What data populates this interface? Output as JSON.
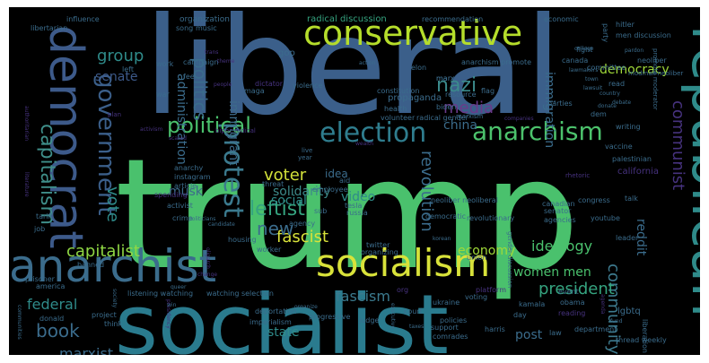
{
  "cloud": {
    "background": "#000000",
    "palette": [
      "#440154",
      "#46327e",
      "#365c8d",
      "#277f8e",
      "#1fa187",
      "#4ac16d",
      "#a0da39",
      "#fde725"
    ],
    "words": [
      {
        "text": "trump",
        "tone": "#4ac16d"
      },
      {
        "text": "liberal",
        "tone": "#3b5f8a"
      },
      {
        "text": "socialist",
        "tone": "#2a7b8e"
      },
      {
        "text": "republican",
        "tone": "#2f8b8a"
      },
      {
        "text": "democrat",
        "tone": "#3d5a8a"
      },
      {
        "text": "anarchist",
        "tone": "#3b6c8c"
      },
      {
        "text": "socialism",
        "tone": "#d8e23a"
      },
      {
        "text": "conservative",
        "tone": "#b5dd2b"
      },
      {
        "text": "election",
        "tone": "#2f7d8e"
      },
      {
        "text": "anarchism",
        "tone": "#4cc26c"
      },
      {
        "text": "government",
        "tone": "#3b5f8a"
      },
      {
        "text": "capitalism",
        "tone": "#3f8f8a"
      },
      {
        "text": "protest",
        "tone": "#3b7a8e"
      },
      {
        "text": "political",
        "tone": "#4ac16d"
      },
      {
        "text": "communist",
        "tone": "#46327e"
      },
      {
        "text": "politics",
        "tone": "#3b6c8c"
      },
      {
        "text": "media",
        "tone": "#6a3a8a"
      },
      {
        "text": "nazi",
        "tone": "#3b8a8c"
      },
      {
        "text": "china",
        "tone": "#3b6c8c"
      },
      {
        "text": "group",
        "tone": "#2f8b8a"
      },
      {
        "text": "senate",
        "tone": "#3d5a8a"
      },
      {
        "text": "democracy",
        "tone": "#a0da39"
      },
      {
        "text": "immigrant",
        "tone": "#3d6a8a"
      },
      {
        "text": "immigration",
        "tone": "#3b6c8c"
      },
      {
        "text": "vote",
        "tone": "#2f8b8a"
      },
      {
        "text": "voter",
        "tone": "#d2e13a"
      },
      {
        "text": "leftist",
        "tone": "#35a37f"
      },
      {
        "text": "fascist",
        "tone": "#d8e23a"
      },
      {
        "text": "new",
        "tone": "#3b6c8c"
      },
      {
        "text": "capitalist",
        "tone": "#8fd744"
      },
      {
        "text": "revolution",
        "tone": "#3b6c8c"
      },
      {
        "text": "community",
        "tone": "#3d7a8e"
      },
      {
        "text": "economy",
        "tone": "#a0da39"
      },
      {
        "text": "ideology",
        "tone": "#4ac16d"
      },
      {
        "text": "fascism",
        "tone": "#3b7a8e"
      },
      {
        "text": "president",
        "tone": "#35a37f"
      },
      {
        "text": "federal",
        "tone": "#2f8b8a"
      },
      {
        "text": "book",
        "tone": "#3b6c8c"
      },
      {
        "text": "marxist",
        "tone": "#3b6c8c"
      },
      {
        "text": "women men",
        "tone": "#4ac16d"
      },
      {
        "text": "state",
        "tone": "#2f8b8a"
      },
      {
        "text": "post",
        "tone": "#3b6c8c"
      },
      {
        "text": "reddit",
        "tone": "#3b6c8c"
      },
      {
        "text": "musk",
        "tone": "#3d6a8a"
      },
      {
        "text": "video",
        "tone": "#2f8b8a"
      },
      {
        "text": "idea",
        "tone": "#3b6c8c"
      },
      {
        "text": "solidarity",
        "tone": "#3d8a8a"
      },
      {
        "text": "social",
        "tone": "#2f8b8a"
      },
      {
        "text": "administration",
        "tone": "#3b6c8c"
      },
      {
        "text": "radical discussion",
        "tone": "#35a37f"
      },
      {
        "text": "recommendation",
        "tone": "#3b6c8c"
      },
      {
        "text": "organization",
        "tone": "#3b6c8c"
      },
      {
        "text": "campaign",
        "tone": "#3b6c8c"
      },
      {
        "text": "influence",
        "tone": "#3b6c8c"
      },
      {
        "text": "libertarian",
        "tone": "#3b6c8c"
      },
      {
        "text": "authoritarian",
        "tone": "#46327e"
      },
      {
        "text": "song",
        "tone": "#3b6c8c"
      },
      {
        "text": "music",
        "tone": "#3b6c8c"
      },
      {
        "text": "economic",
        "tone": "#3b6c8c"
      },
      {
        "text": "hitler",
        "tone": "#3b6c8c"
      },
      {
        "text": "men discussion",
        "tone": "#3b6c8c"
      },
      {
        "text": "party",
        "tone": "#3b6c8c"
      },
      {
        "text": "fight",
        "tone": "#3b6c8c"
      },
      {
        "text": "pardon",
        "tone": "#3b6c8c"
      },
      {
        "text": "neoliber",
        "tone": "#3b6c8c"
      },
      {
        "text": "modmail neoliber",
        "tone": "#3b6c8c"
      },
      {
        "text": "gop",
        "tone": "#3b6c8c"
      },
      {
        "text": "work",
        "tone": "#3b6c8c"
      },
      {
        "text": "maga",
        "tone": "#3b6c8c"
      },
      {
        "text": "feel",
        "tone": "#3b6c8c"
      },
      {
        "text": "left",
        "tone": "#3b6c8c"
      },
      {
        "text": "war",
        "tone": "#3b6c8c"
      },
      {
        "text": "dictator",
        "tone": "#46327e"
      },
      {
        "text": "violence",
        "tone": "#3b6c8c"
      },
      {
        "text": "constitution",
        "tone": "#3b6c8c"
      },
      {
        "text": "propaganda",
        "tone": "#3b6c8c"
      },
      {
        "text": "resource",
        "tone": "#3b6c8c"
      },
      {
        "text": "anarchism promote",
        "tone": "#3b6c8c"
      },
      {
        "text": "action",
        "tone": "#3b6c8c"
      },
      {
        "text": "elon",
        "tone": "#3b6c8c"
      },
      {
        "text": "marx",
        "tone": "#3b6c8c"
      },
      {
        "text": "flag",
        "tone": "#3b6c8c"
      },
      {
        "text": "canada",
        "tone": "#3b6c8c"
      },
      {
        "text": "lawmakers",
        "tone": "#3b6c8c"
      },
      {
        "text": "town",
        "tone": "#3b6c8c"
      },
      {
        "text": "lawsuit",
        "tone": "#3b6c8c"
      },
      {
        "text": "committee",
        "tone": "#3b6c8c"
      },
      {
        "text": "read",
        "tone": "#3b6c8c"
      },
      {
        "text": "country",
        "tone": "#3b6c8c"
      },
      {
        "text": "debate",
        "tone": "#3b6c8c"
      },
      {
        "text": "promote moderator",
        "tone": "#3b6c8c"
      },
      {
        "text": "college",
        "tone": "#3b6c8c"
      },
      {
        "text": "health",
        "tone": "#3b6c8c"
      },
      {
        "text": "biden",
        "tone": "#3b6c8c"
      },
      {
        "text": "volunteer",
        "tone": "#3b6c8c"
      },
      {
        "text": "radical gender",
        "tone": "#3b6c8c"
      },
      {
        "text": "dem",
        "tone": "#3b6c8c"
      },
      {
        "text": "writing",
        "tone": "#3b6c8c"
      },
      {
        "text": "vaccine",
        "tone": "#3b6c8c"
      },
      {
        "text": "palestinian",
        "tone": "#3b6c8c"
      },
      {
        "text": "california",
        "tone": "#46327e"
      },
      {
        "text": "marxism",
        "tone": "#3b6c8c"
      },
      {
        "text": "activism",
        "tone": "#46327e"
      },
      {
        "text": "bipoc radical",
        "tone": "#46327e"
      },
      {
        "text": "plan",
        "tone": "#46327e"
      },
      {
        "text": "anarchy",
        "tone": "#3b6c8c"
      },
      {
        "text": "instagram",
        "tone": "#3b6c8c"
      },
      {
        "text": "article",
        "tone": "#3b6c8c"
      },
      {
        "text": "activist",
        "tone": "#3b6c8c"
      },
      {
        "text": "spending",
        "tone": "#46327e"
      },
      {
        "text": "crime",
        "tone": "#3b6c8c"
      },
      {
        "text": "politicians",
        "tone": "#3b6c8c"
      },
      {
        "text": "candidate",
        "tone": "#3b6c8c"
      },
      {
        "text": "oligarch",
        "tone": "#46327e"
      },
      {
        "text": "housing",
        "tone": "#3b6c8c"
      },
      {
        "text": "worker",
        "tone": "#3b6c8c"
      },
      {
        "text": "aid",
        "tone": "#3b6c8c"
      },
      {
        "text": "employee",
        "tone": "#3b6c8c"
      },
      {
        "text": "tesla",
        "tone": "#3b6c8c"
      },
      {
        "text": "russia",
        "tone": "#3b6c8c"
      },
      {
        "text": "threat",
        "tone": "#3b6c8c"
      },
      {
        "text": "agency",
        "tone": "#3b6c8c"
      },
      {
        "text": "sub",
        "tone": "#3b6c8c"
      },
      {
        "text": "democratic",
        "tone": "#3b6c8c"
      },
      {
        "text": "neoliber neoliberal",
        "tone": "#3b6c8c"
      },
      {
        "text": "revolutionary",
        "tone": "#3b6c8c"
      },
      {
        "text": "gender discussion",
        "tone": "#3b6c8c"
      },
      {
        "text": "canadian",
        "tone": "#3b6c8c"
      },
      {
        "text": "senator",
        "tone": "#3b6c8c"
      },
      {
        "text": "agencies",
        "tone": "#3b6c8c"
      },
      {
        "text": "congress",
        "tone": "#3b6c8c"
      },
      {
        "text": "talk",
        "tone": "#3b6c8c"
      },
      {
        "text": "youtube",
        "tone": "#3b6c8c"
      },
      {
        "text": "leader",
        "tone": "#3b6c8c"
      },
      {
        "text": "twitter",
        "tone": "#3b6c8c"
      },
      {
        "text": "organizing",
        "tone": "#3b6c8c"
      },
      {
        "text": "korean",
        "tone": "#3b6c8c"
      },
      {
        "text": "union",
        "tone": "#3b6c8c"
      },
      {
        "text": "platform",
        "tone": "#46327e"
      },
      {
        "text": "voting",
        "tone": "#3b6c8c"
      },
      {
        "text": "obama",
        "tone": "#3b6c8c"
      },
      {
        "text": "kamala",
        "tone": "#3b6c8c"
      },
      {
        "text": "event",
        "tone": "#3b6c8c"
      },
      {
        "text": "lgbtq",
        "tone": "#3b6c8c"
      },
      {
        "text": "liberation",
        "tone": "#3b6c8c"
      },
      {
        "text": "tariff",
        "tone": "#3b6c8c"
      },
      {
        "text": "job",
        "tone": "#3b6c8c"
      },
      {
        "text": "banned",
        "tone": "#3b6c8c"
      },
      {
        "text": "literature",
        "tone": "#46327e"
      },
      {
        "text": "prisoner",
        "tone": "#3b6c8c"
      },
      {
        "text": "america",
        "tone": "#3b6c8c"
      },
      {
        "text": "listening watching",
        "tone": "#3b6c8c"
      },
      {
        "text": "watching selection",
        "tone": "#3b6c8c"
      },
      {
        "text": "donald",
        "tone": "#3b6c8c"
      },
      {
        "text": "project",
        "tone": "#3b6c8c"
      },
      {
        "text": "think",
        "tone": "#3b6c8c"
      },
      {
        "text": "deportation",
        "tone": "#3b6c8c"
      },
      {
        "text": "imperialism",
        "tone": "#3b6c8c"
      },
      {
        "text": "progressive",
        "tone": "#3b6c8c"
      },
      {
        "text": "judge",
        "tone": "#3b6c8c"
      },
      {
        "text": "ukraine",
        "tone": "#3b6c8c"
      },
      {
        "text": "policies",
        "tone": "#3b6c8c"
      },
      {
        "text": "court",
        "tone": "#3b6c8c"
      },
      {
        "text": "executive",
        "tone": "#3b6c8c"
      },
      {
        "text": "support",
        "tone": "#3b6c8c"
      },
      {
        "text": "comrades",
        "tone": "#3b6c8c"
      },
      {
        "text": "harris",
        "tone": "#3b6c8c"
      },
      {
        "text": "day",
        "tone": "#3b6c8c"
      },
      {
        "text": "law",
        "tone": "#3b6c8c"
      },
      {
        "text": "department",
        "tone": "#3b6c8c"
      },
      {
        "text": "thread weekly",
        "tone": "#3b6c8c"
      },
      {
        "text": "communities",
        "tone": "#3b6c8c"
      },
      {
        "text": "presidency",
        "tone": "#46327e"
      },
      {
        "text": "fund",
        "tone": "#3b6c8c"
      },
      {
        "text": "taxes",
        "tone": "#3b6c8c"
      },
      {
        "text": "queer",
        "tone": "#3b6c8c"
      },
      {
        "text": "society",
        "tone": "#3b6c8c"
      },
      {
        "text": "win",
        "tone": "#3b6c8c"
      },
      {
        "text": "org",
        "tone": "#46327e"
      },
      {
        "text": "reading",
        "tone": "#46327e"
      },
      {
        "text": "agenda",
        "tone": "#46327e"
      },
      {
        "text": "marx",
        "tone": "#3b6c8c"
      },
      {
        "text": "parties",
        "tone": "#3b6c8c"
      },
      {
        "text": "rhetoric",
        "tone": "#46327e"
      },
      {
        "text": "live",
        "tone": "#3b6c8c"
      },
      {
        "text": "year",
        "tone": "#3b6c8c"
      },
      {
        "text": "wealth",
        "tone": "#46327e"
      },
      {
        "text": "companies",
        "tone": "#46327e"
      },
      {
        "text": "scared",
        "tone": "#46327e"
      },
      {
        "text": "donate",
        "tone": "#3b6c8c"
      },
      {
        "text": "change",
        "tone": "#46327e"
      },
      {
        "text": "organize",
        "tone": "#3b6c8c"
      },
      {
        "text": "theme",
        "tone": "#46327e"
      },
      {
        "text": "people",
        "tone": "#46327e"
      },
      {
        "text": "trans",
        "tone": "#46327e"
      }
    ]
  }
}
